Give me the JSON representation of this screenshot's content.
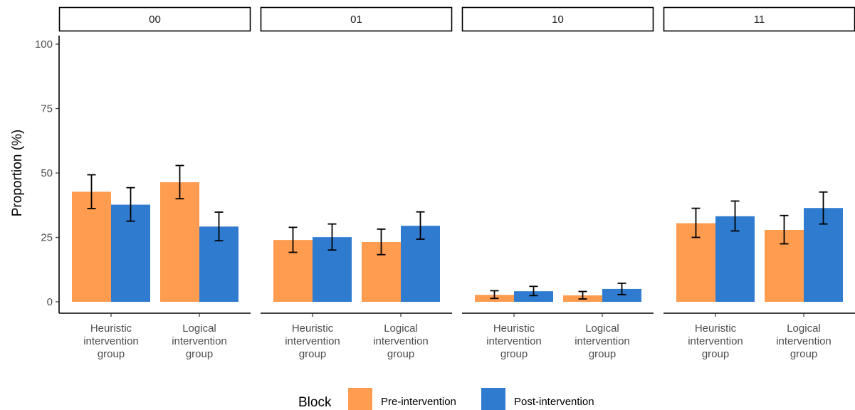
{
  "chart_data": {
    "type": "bar",
    "facet_variable": "",
    "panels": [
      "00",
      "01",
      "10",
      "11"
    ],
    "categories": [
      [
        "Heuristic",
        "intervention",
        "group"
      ],
      [
        "Logical",
        "intervention",
        "group"
      ]
    ],
    "ylabel": "Proportion (%)",
    "ylim": [
      0,
      100
    ],
    "yticks": [
      0,
      25,
      50,
      75,
      100
    ],
    "grid": false,
    "legend": {
      "title": "Block",
      "position": "bottom",
      "entries": [
        "Pre-intervention",
        "Post-intervention"
      ]
    },
    "colors": {
      "Pre-intervention": "#FF9C50",
      "Post-intervention": "#2F7BCF"
    },
    "data": [
      {
        "panel": "00",
        "series": [
          {
            "name": "Pre-intervention",
            "values": [
              42.7,
              46.4
            ],
            "err_low": [
              36.2,
              40.0
            ],
            "err_high": [
              49.3,
              52.9
            ]
          },
          {
            "name": "Post-intervention",
            "values": [
              37.7,
              29.2
            ],
            "err_low": [
              31.3,
              23.7
            ],
            "err_high": [
              44.3,
              34.8
            ]
          }
        ]
      },
      {
        "panel": "01",
        "series": [
          {
            "name": "Pre-intervention",
            "values": [
              24.0,
              23.2
            ],
            "err_low": [
              19.2,
              18.3
            ],
            "err_high": [
              28.9,
              28.2
            ]
          },
          {
            "name": "Post-intervention",
            "values": [
              25.1,
              29.5
            ],
            "err_low": [
              20.1,
              24.3
            ],
            "err_high": [
              30.2,
              34.9
            ]
          }
        ]
      },
      {
        "panel": "10",
        "series": [
          {
            "name": "Pre-intervention",
            "values": [
              2.7,
              2.5
            ],
            "err_low": [
              1.3,
              1.1
            ],
            "err_high": [
              4.3,
              4.0
            ]
          },
          {
            "name": "Post-intervention",
            "values": [
              4.1,
              5.0
            ],
            "err_low": [
              2.4,
              2.8
            ],
            "err_high": [
              6.0,
              7.2
            ]
          }
        ]
      },
      {
        "panel": "11",
        "series": [
          {
            "name": "Pre-intervention",
            "values": [
              30.5,
              27.9
            ],
            "err_low": [
              25.0,
              22.5
            ],
            "err_high": [
              36.3,
              33.5
            ]
          },
          {
            "name": "Post-intervention",
            "values": [
              33.2,
              36.4
            ],
            "err_low": [
              27.5,
              30.2
            ],
            "err_high": [
              39.1,
              42.6
            ]
          }
        ]
      }
    ]
  }
}
